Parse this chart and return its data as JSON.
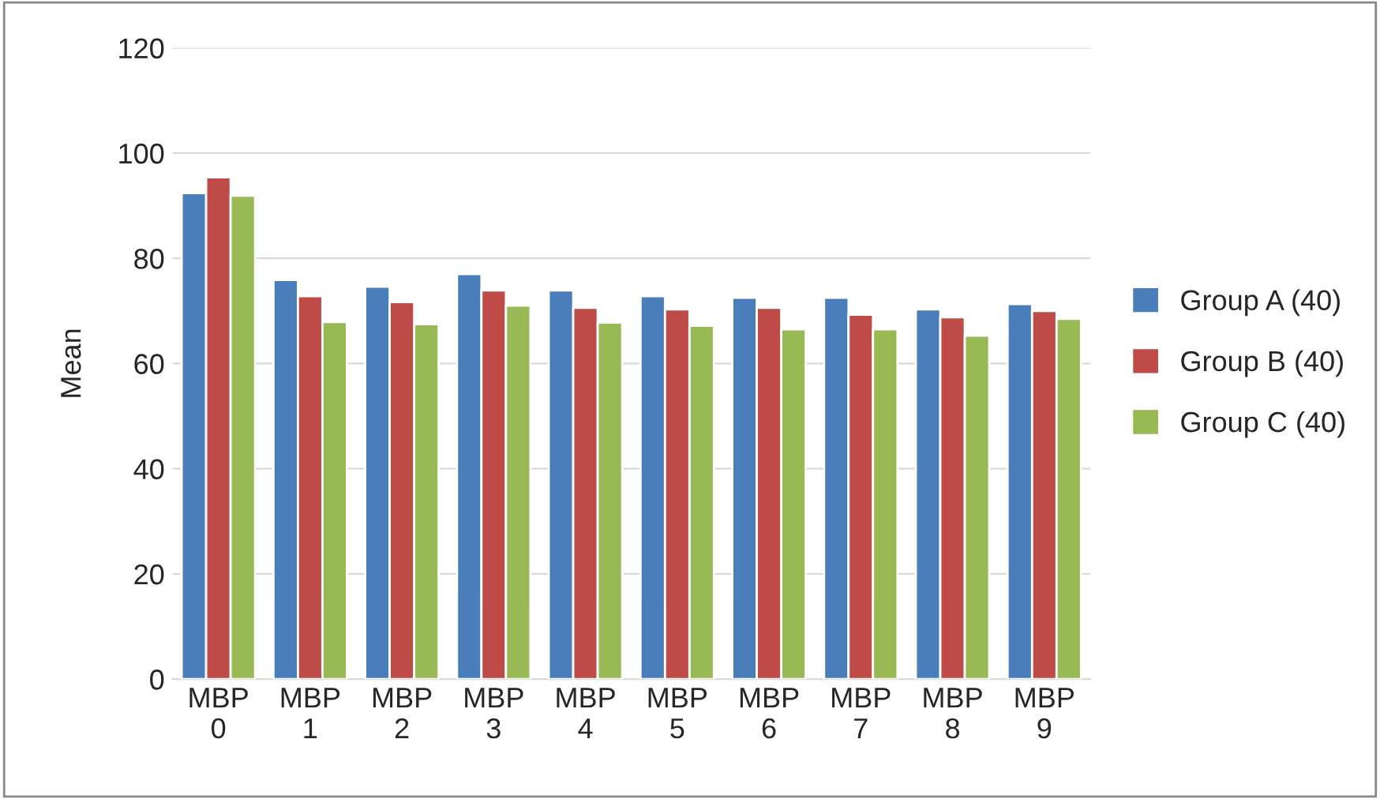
{
  "chart_data": {
    "type": "bar",
    "ylabel": "Mean",
    "categories": [
      "MBP\n0",
      "MBP\n1",
      "MBP\n2",
      "MBP\n3",
      "MBP\n4",
      "MBP\n5",
      "MBP\n6",
      "MBP\n7",
      "MBP\n8",
      "MBP\n9"
    ],
    "series": [
      {
        "name": "Group A (40)",
        "color": "#4a7ebb",
        "values": [
          92.4,
          75.9,
          74.6,
          77.0,
          73.9,
          72.8,
          72.5,
          72.5,
          70.3,
          71.3
        ]
      },
      {
        "name": "Group B (40)",
        "color": "#be4b48",
        "values": [
          95.4,
          72.8,
          71.7,
          73.9,
          70.6,
          70.3,
          70.6,
          69.3,
          68.8,
          70.0
        ]
      },
      {
        "name": "Group C (40)",
        "color": "#98b954",
        "values": [
          91.9,
          67.9,
          67.5,
          71.0,
          67.8,
          67.2,
          66.5,
          66.5,
          65.3,
          68.5
        ]
      }
    ],
    "ylim": [
      0,
      120
    ],
    "yticks": [
      0,
      20,
      40,
      60,
      80,
      100,
      120
    ],
    "grid": "y",
    "legend": "right"
  }
}
